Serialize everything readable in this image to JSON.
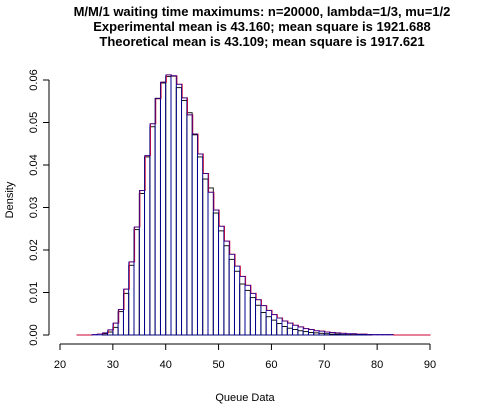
{
  "chart_data": {
    "type": "bar",
    "title_lines": [
      "M/M/1 waiting time maximums: n=20000, lambda=1/3, mu=1/2",
      "Experimental mean is 43.160; mean square is 1921.688",
      "Theoretical mean is 43.109; mean square is 1917.621"
    ],
    "xlabel": "Queue Data",
    "ylabel": "Density",
    "xlim": [
      20,
      90
    ],
    "ylim": [
      0,
      0.064
    ],
    "x_ticks": [
      "20",
      "30",
      "40",
      "50",
      "60",
      "70",
      "80",
      "90"
    ],
    "x_tick_values": [
      20,
      30,
      40,
      50,
      60,
      70,
      80,
      90
    ],
    "y_ticks": [
      "0.00",
      "0.01",
      "0.02",
      "0.03",
      "0.04",
      "0.05",
      "0.06"
    ],
    "y_tick_values": [
      0,
      0.01,
      0.02,
      0.03,
      0.04,
      0.05,
      0.06
    ],
    "bin_start": 23,
    "bin_width": 1,
    "series": [
      {
        "values": [
          0,
          0,
          0,
          0,
          0,
          0.0003,
          0.0007,
          0.0018,
          0.0055,
          0.0098,
          0.0164,
          0.0248,
          0.0333,
          0.0419,
          0.049,
          0.0557,
          0.0593,
          0.0608,
          0.0609,
          0.0582,
          0.0552,
          0.0523,
          0.0471,
          0.0419,
          0.0367,
          0.0346,
          0.0287,
          0.0245,
          0.021,
          0.0178,
          0.015,
          0.012,
          0.0105,
          0.0088,
          0.007,
          0.0053,
          0.0043,
          0.0035,
          0.0027,
          0.002,
          0.0016,
          0.0013,
          0.001,
          0.0008,
          0.0006,
          0.0005,
          0.0004,
          0.0003,
          0.0002,
          0.0002,
          0.0001,
          0.0001,
          0.0001,
          0.0001,
          0.0001,
          0.0001,
          0.0,
          0.0,
          0.0,
          0.0,
          0.0,
          0.0,
          0.0,
          0.0,
          0.0,
          0.0,
          0.0
        ]
      },
      {
        "values": [
          0.0,
          0.0,
          0.0,
          0.0001,
          0.0002,
          0.0005,
          0.0012,
          0.0028,
          0.006,
          0.0108,
          0.0172,
          0.0254,
          0.034,
          0.0422,
          0.0497,
          0.0556,
          0.0595,
          0.0612,
          0.061,
          0.059,
          0.0558,
          0.0518,
          0.0473,
          0.0426,
          0.038,
          0.0336,
          0.0294,
          0.0256,
          0.0221,
          0.019,
          0.0162,
          0.0138,
          0.0117,
          0.0098,
          0.0083,
          0.0069,
          0.0058,
          0.0048,
          0.004,
          0.0033,
          0.0028,
          0.0023,
          0.0019,
          0.0015,
          0.0013,
          0.001,
          0.0009,
          0.0007,
          0.0006,
          0.0005,
          0.0004,
          0.0003,
          0.0003,
          0.0002,
          0.0002,
          0.0001,
          0.0001,
          0.0001,
          0.0001,
          0.0001,
          0.0,
          0.0,
          0.0,
          0.0,
          0.0,
          0.0,
          0.0
        ]
      }
    ],
    "colors": {
      "bars": "#000000",
      "overlay": "#cc0033",
      "outline": "#0000aa"
    },
    "grid": false,
    "legend": "none"
  }
}
